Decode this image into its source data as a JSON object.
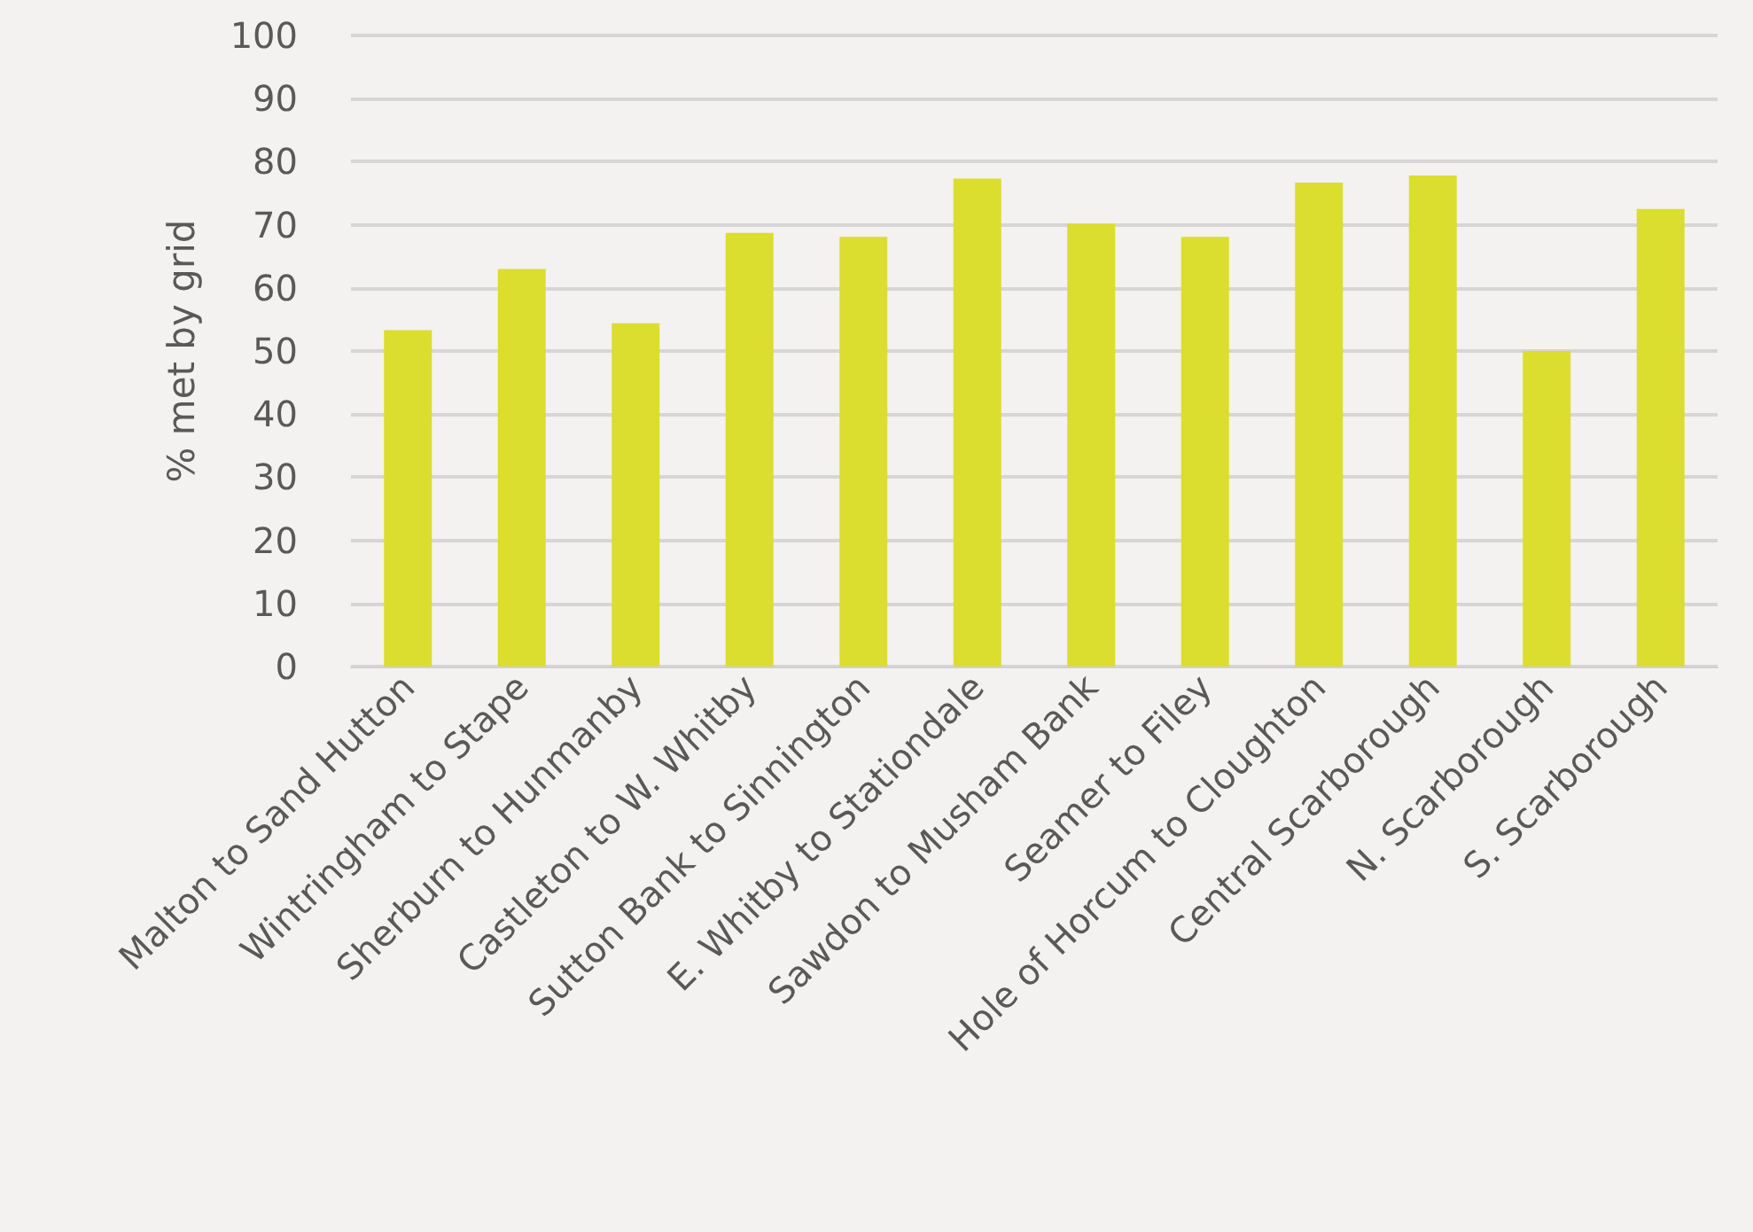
{
  "chart_data": {
    "type": "bar",
    "ylabel": "% met by grid",
    "categories": [
      "Malton to Sand Hutton",
      "Wintringham to Stape",
      "Sherburn to Hunmanby",
      "Castleton to W. Whitby",
      "Sutton Bank to Sinnington",
      "E. Whitby to Stationdale",
      "Sawdon to Musham Bank",
      "Seamer to Filey",
      "Hole of Horcum to Cloughton",
      "Central Scarborough",
      "N. Scarborough",
      "S. Scarborough"
    ],
    "values": [
      53.3,
      63,
      54.4,
      68.7,
      68.1,
      77.3,
      70.2,
      68.1,
      76.7,
      77.8,
      50,
      72.5
    ],
    "color": "#dbdd2f",
    "ylim": [
      0,
      100
    ],
    "yticks": [
      0,
      10,
      20,
      30,
      40,
      50,
      60,
      70,
      80,
      90,
      100
    ],
    "grid": "y"
  }
}
